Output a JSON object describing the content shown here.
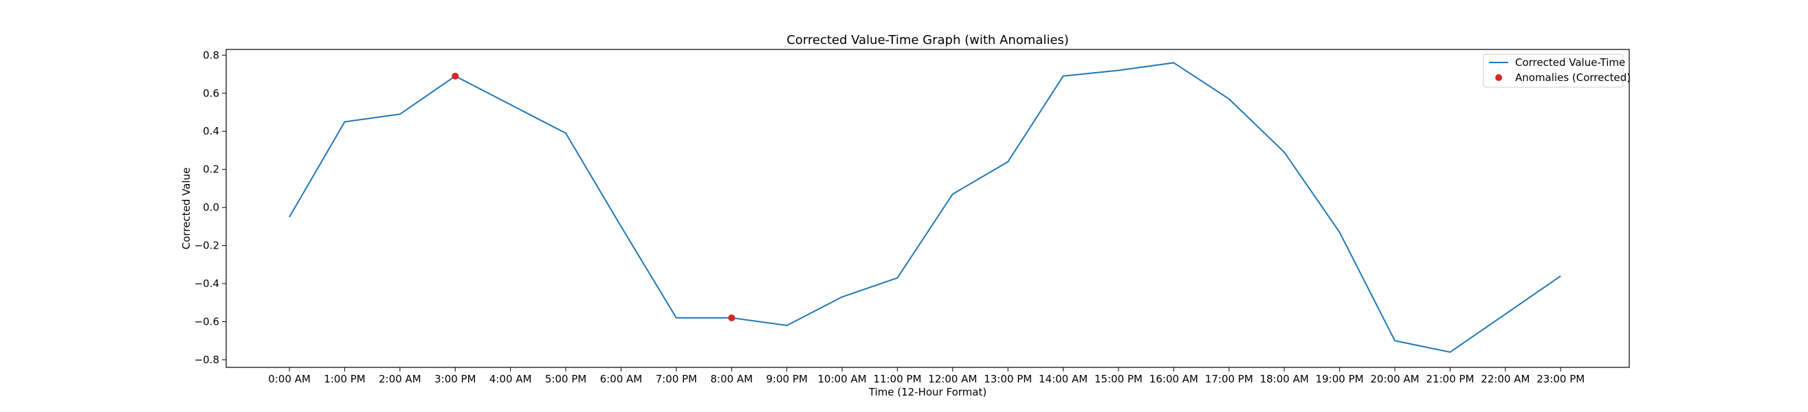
{
  "chart_data": {
    "type": "line",
    "title": "Corrected Value-Time Graph (with Anomalies)",
    "xlabel": "Time (12-Hour Format)",
    "ylabel": "Corrected Value",
    "categories": [
      "0:00 AM",
      "1:00 PM",
      "2:00 AM",
      "3:00 PM",
      "4:00 AM",
      "5:00 PM",
      "6:00 AM",
      "7:00 PM",
      "8:00 AM",
      "9:00 PM",
      "10:00 AM",
      "11:00 PM",
      "12:00 AM",
      "13:00 PM",
      "14:00 AM",
      "15:00 PM",
      "16:00 AM",
      "17:00 PM",
      "18:00 AM",
      "19:00 PM",
      "20:00 AM",
      "21:00 PM",
      "22:00 AM",
      "23:00 PM"
    ],
    "ylim": [
      -0.84,
      0.83
    ],
    "yticks": [
      -0.8,
      -0.6,
      -0.4,
      -0.2,
      0.0,
      0.2,
      0.4,
      0.6,
      0.8
    ],
    "ytick_labels": [
      "−0.8",
      "−0.6",
      "−0.4",
      "−0.2",
      "0.0",
      "0.2",
      "0.4",
      "0.6",
      "0.8"
    ],
    "grid": false,
    "legend_position": "top-right",
    "series": [
      {
        "name": "Corrected Value-Time",
        "color": "#1f77b4",
        "values": [
          -0.05,
          0.45,
          0.49,
          0.69,
          0.54,
          0.39,
          -0.1,
          -0.58,
          -0.58,
          -0.62,
          -0.47,
          -0.37,
          0.07,
          0.24,
          0.69,
          0.72,
          0.76,
          0.57,
          0.29,
          -0.13,
          -0.7,
          -0.76,
          -0.56,
          -0.36
        ]
      }
    ],
    "anomalies": {
      "name": "Anomalies (Corrected)",
      "color": "#d62728",
      "points": [
        {
          "x": "3:00 PM",
          "y": 0.69
        },
        {
          "x": "8:00 AM",
          "y": -0.58
        }
      ]
    }
  }
}
